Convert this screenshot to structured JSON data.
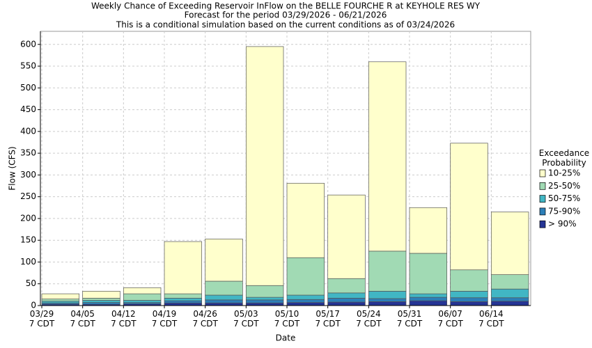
{
  "chart_data": {
    "type": "stacked_bar",
    "title": "Weekly Chance of Exceeding Reservoir InFlow on the BELLE FOURCHE R at KEYHOLE RES WY",
    "subtitles": [
      "Forecast for the period 03/29/2026 - 06/21/2026",
      "This is a conditional simulation based on the current conditions as of 03/24/2026"
    ],
    "x_label": "Date",
    "y_label": "Flow (CFS)",
    "legend_title": "Exceedance\nProbability",
    "categories": [
      "03/29\n7 CDT",
      "04/05\n7 CDT",
      "04/12\n7 CDT",
      "04/19\n7 CDT",
      "04/26\n7 CDT",
      "05/03\n7 CDT",
      "05/10\n7 CDT",
      "05/17\n7 CDT",
      "05/24\n7 CDT",
      "05/31\n7 CDT",
      "06/07\n7 CDT",
      "06/14\n7 CDT"
    ],
    "series": [
      {
        "name": "> 90%",
        "color": "#253494",
        "values": [
          3,
          3,
          4,
          6,
          6,
          6,
          7,
          8,
          9,
          11,
          9,
          10
        ]
      },
      {
        "name": "75-90%",
        "color": "#2c7fb8",
        "values": [
          3,
          4,
          3,
          5,
          7,
          7,
          7,
          9,
          7,
          8,
          9,
          8
        ]
      },
      {
        "name": "50-75%",
        "color": "#41b6c4",
        "values": [
          4,
          5,
          5,
          6,
          11,
          6,
          10,
          12,
          17,
          8,
          15,
          20
        ]
      },
      {
        "name": "25-50%",
        "color": "#a1dab4",
        "values": [
          5,
          5,
          15,
          10,
          32,
          27,
          86,
          33,
          92,
          93,
          49,
          33
        ]
      },
      {
        "name": "10-25%",
        "color": "#ffffcc",
        "values": [
          12,
          16,
          14,
          120,
          97,
          549,
          171,
          192,
          435,
          105,
          291,
          144
        ]
      }
    ],
    "ylim": [
      0,
      630
    ],
    "yticks": [
      0,
      50,
      100,
      150,
      200,
      250,
      300,
      350,
      400,
      450,
      500,
      550,
      600
    ],
    "grid": true
  }
}
